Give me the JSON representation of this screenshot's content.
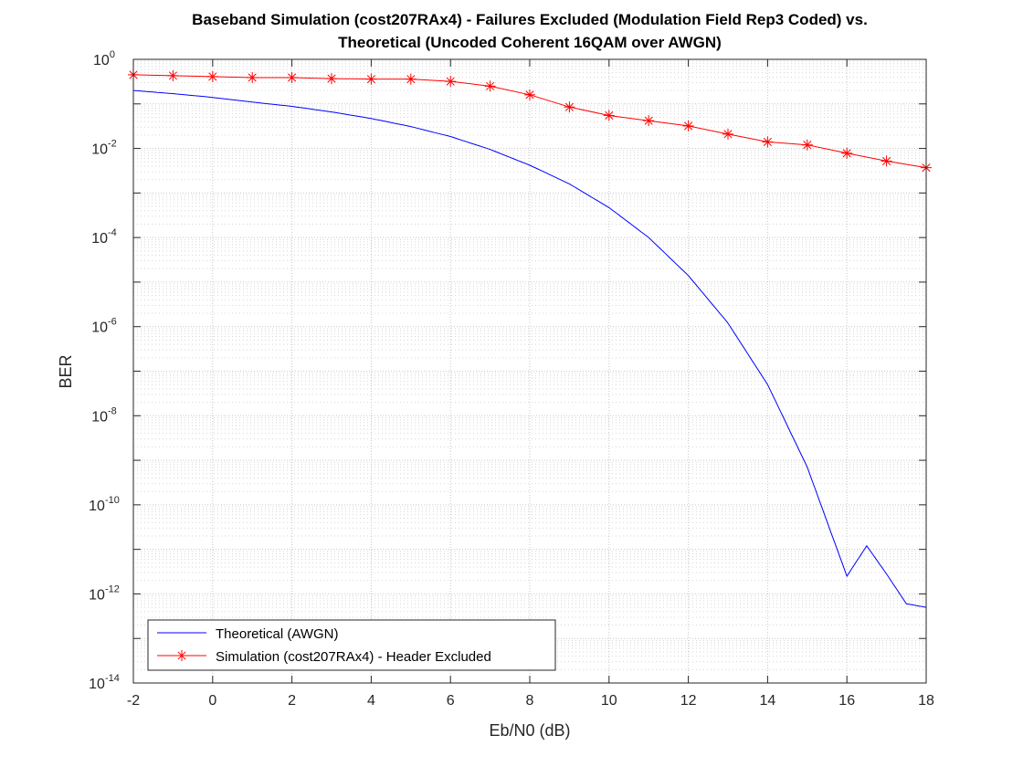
{
  "chart_data": {
    "type": "line",
    "title_line1": "Baseband Simulation (cost207RAx4) - Failures Excluded (Modulation Field Rep3 Coded) vs.",
    "title_line2": "Theoretical (Uncoded Coherent 16QAM over AWGN)",
    "xlabel": "Eb/N0 (dB)",
    "ylabel": "BER",
    "xlim": [
      -2,
      18
    ],
    "ylim": [
      1e-14,
      1
    ],
    "yscale": "log",
    "grid": true,
    "minor_grid": true,
    "legend_location": "bottom-left",
    "x_ticks": [
      "-2",
      "0",
      "2",
      "4",
      "6",
      "8",
      "10",
      "12",
      "14",
      "16",
      "18"
    ],
    "y_ticks": [
      {
        "base": "10",
        "exp": "-14"
      },
      {
        "base": "10",
        "exp": "-12"
      },
      {
        "base": "10",
        "exp": "-10"
      },
      {
        "base": "10",
        "exp": "-8"
      },
      {
        "base": "10",
        "exp": "-6"
      },
      {
        "base": "10",
        "exp": "-4"
      },
      {
        "base": "10",
        "exp": "-2"
      },
      {
        "base": "10",
        "exp": "0"
      }
    ],
    "series": [
      {
        "name": "Theoretical (AWGN)",
        "color": "#0000ff",
        "marker": "none",
        "x": [
          -2,
          -1,
          0,
          1,
          2,
          3,
          4,
          5,
          6,
          7,
          8,
          9,
          10,
          11,
          12,
          13,
          14,
          15,
          16,
          17,
          18
        ],
        "y": [
          0.2,
          0.17,
          0.14,
          0.11,
          0.088,
          0.066,
          0.047,
          0.031,
          0.0185,
          0.0095,
          0.0042,
          0.0016,
          0.00047,
          0.0001,
          1.4e-05,
          1.2e-06,
          5e-08,
          7e-10,
          2.5e-12,
          0,
          0
        ],
        "y_tail": [
          [
            16.5,
            1.2e-11
          ],
          [
            17,
            2.8e-12
          ],
          [
            17.5,
            6e-13
          ],
          [
            18,
            5e-13
          ]
        ]
      },
      {
        "name": "Simulation (cost207RAx4) - Header Excluded",
        "color": "#ff0000",
        "marker": "asterisk",
        "x": [
          -2,
          -1,
          0,
          1,
          2,
          3,
          4,
          5,
          6,
          7,
          8,
          9,
          10,
          11,
          12,
          13,
          14,
          15,
          16,
          17,
          18
        ],
        "y": [
          0.45,
          0.43,
          0.41,
          0.39,
          0.39,
          0.37,
          0.36,
          0.36,
          0.32,
          0.25,
          0.16,
          0.085,
          0.055,
          0.042,
          0.032,
          0.021,
          0.014,
          0.012,
          0.0078,
          0.0052,
          0.0037
        ]
      }
    ]
  }
}
